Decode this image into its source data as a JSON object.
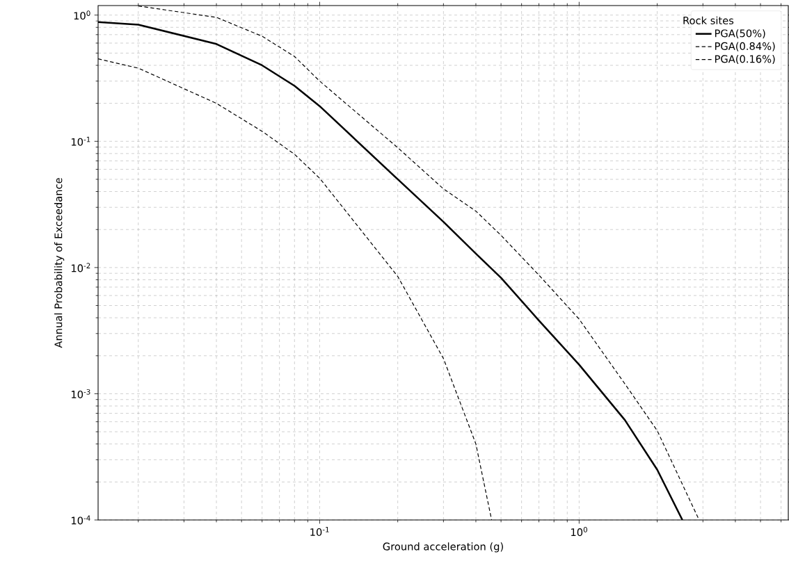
{
  "chart_data": {
    "type": "line",
    "xlabel": "Ground acceleration (g)",
    "ylabel": "Annual Probability of Exceedance",
    "legend_title": "Rock sites",
    "log": "xy",
    "grid": true,
    "legend": "top right",
    "xlim": [
      0.014,
      6.4
    ],
    "ylim": [
      0.0001,
      1.19
    ],
    "xticks": [
      {
        "value": 0.1,
        "label": "10$^{-1}$"
      },
      {
        "value": 1,
        "label": "10$^{0}$"
      }
    ],
    "yticks": [
      {
        "value": 0.0001,
        "label": "10$^{-4}$"
      },
      {
        "value": 0.001,
        "label": "10$^{-3}$"
      },
      {
        "value": 0.01,
        "label": "10$^{-2}$"
      },
      {
        "value": 0.1,
        "label": "10$^{-1}$"
      },
      {
        "value": 1,
        "label": "10$^{0}$"
      }
    ],
    "series": [
      {
        "name": "PGA(50%)",
        "color": "#000000",
        "line_style": "solid",
        "x": [
          0.014,
          0.02,
          0.04,
          0.06,
          0.08,
          0.1,
          0.2,
          0.3,
          0.4,
          0.5,
          0.7,
          1.0,
          1.5,
          2.0,
          2.5
        ],
        "values": [
          0.88,
          0.84,
          0.59,
          0.4,
          0.275,
          0.19,
          0.05,
          0.023,
          0.0129,
          0.0083,
          0.0038,
          0.0017,
          0.00062,
          0.00025,
          0.0001
        ]
      },
      {
        "name": "PGA(0.84%)",
        "color": "#000000",
        "line_style": "dashed",
        "x": [
          0.02,
          0.04,
          0.06,
          0.08,
          0.1,
          0.2,
          0.3,
          0.4,
          0.5,
          0.7,
          1.0,
          1.5,
          2.0,
          2.9
        ],
        "values": [
          1.18,
          0.96,
          0.68,
          0.47,
          0.3,
          0.089,
          0.042,
          0.028,
          0.018,
          0.0087,
          0.0039,
          0.0012,
          0.00051,
          0.0001
        ]
      },
      {
        "name": "PGA(0.16%)",
        "color": "#000000",
        "line_style": "dashed",
        "x": [
          0.014,
          0.02,
          0.04,
          0.06,
          0.08,
          0.1,
          0.2,
          0.3,
          0.4,
          0.46
        ],
        "values": [
          0.45,
          0.38,
          0.2,
          0.12,
          0.079,
          0.051,
          0.0085,
          0.0019,
          0.0004,
          0.0001
        ]
      }
    ]
  }
}
